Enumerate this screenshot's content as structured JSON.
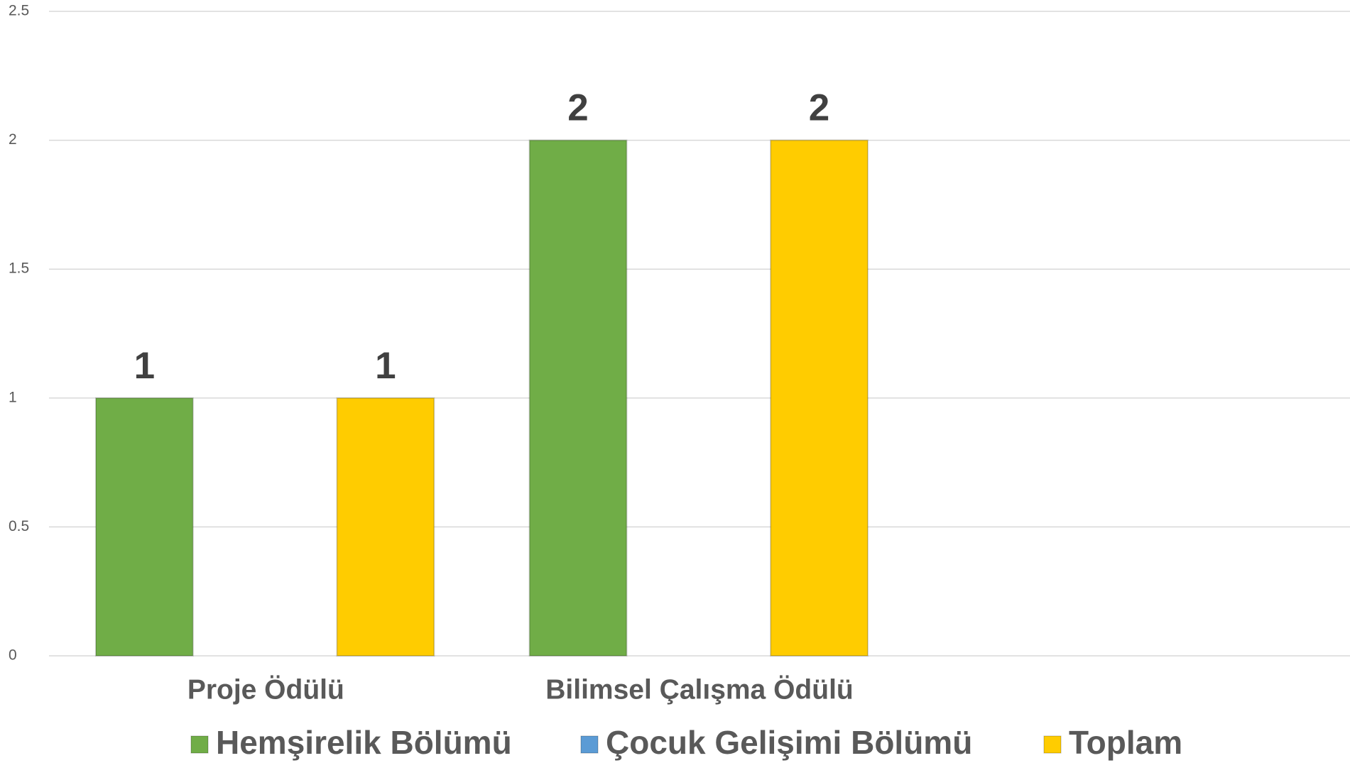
{
  "chart_data": {
    "type": "bar",
    "categories": [
      "Proje Ödülü",
      "Bilimsel Çalışma Ödülü",
      null
    ],
    "series": [
      {
        "name": "Hemşirelik Bölümü",
        "color": "#70ad47",
        "values": [
          1,
          2,
          null
        ]
      },
      {
        "name": "Çocuk Gelişimi Bölümü",
        "color": "#5b9bd5",
        "values": [
          null,
          null,
          null
        ]
      },
      {
        "name": "Toplam",
        "color": "#ffcc00",
        "values": [
          1,
          2,
          null
        ]
      }
    ],
    "ylim": [
      0,
      2.5
    ],
    "yticks": [
      0,
      0.5,
      1,
      1.5,
      2,
      2.5
    ],
    "grid": true,
    "legend": "bottom"
  }
}
